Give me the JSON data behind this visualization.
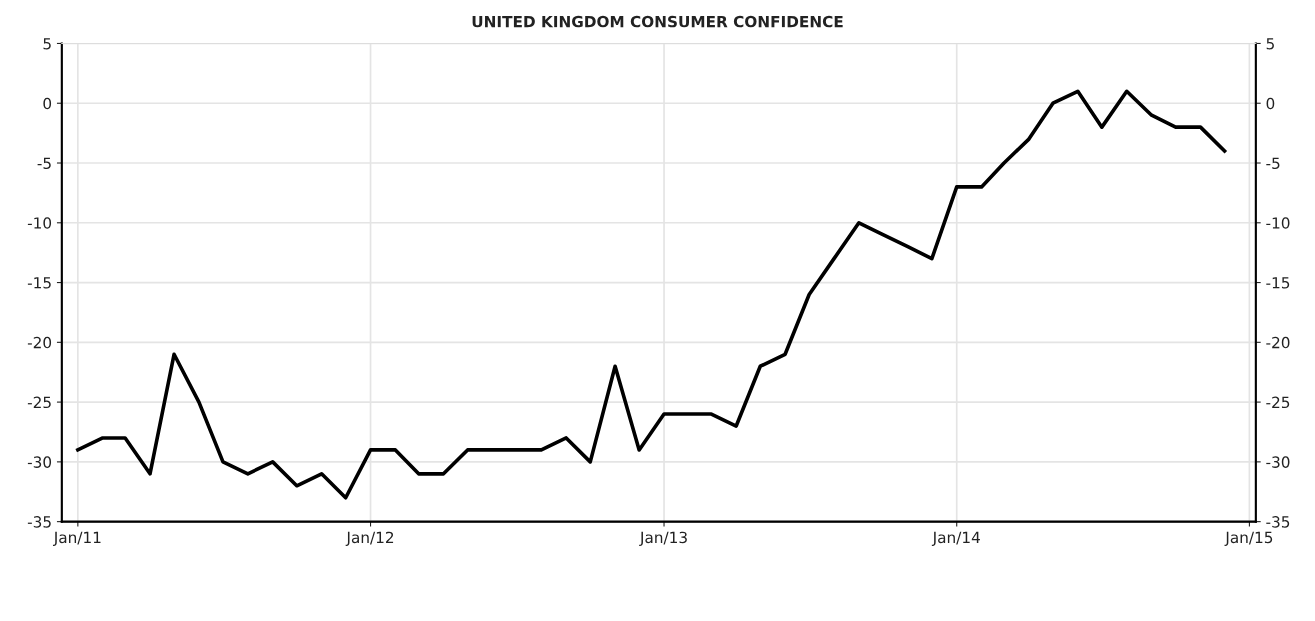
{
  "chart_data": {
    "type": "line",
    "title": "UNITED KINGDOM CONSUMER CONFIDENCE",
    "x": [
      "2011-01",
      "2011-02",
      "2011-03",
      "2011-04",
      "2011-05",
      "2011-06",
      "2011-07",
      "2011-08",
      "2011-09",
      "2011-10",
      "2011-11",
      "2011-12",
      "2012-01",
      "2012-02",
      "2012-03",
      "2012-04",
      "2012-05",
      "2012-06",
      "2012-07",
      "2012-08",
      "2012-09",
      "2012-10",
      "2012-11",
      "2012-12",
      "2013-01",
      "2013-02",
      "2013-03",
      "2013-04",
      "2013-05",
      "2013-06",
      "2013-07",
      "2013-08",
      "2013-09",
      "2013-10",
      "2013-11",
      "2013-12",
      "2014-01",
      "2014-02",
      "2014-03",
      "2014-04",
      "2014-05",
      "2014-06",
      "2014-07",
      "2014-08",
      "2014-09",
      "2014-10",
      "2014-11",
      "2014-12"
    ],
    "series": [
      {
        "color": "#000000",
        "values": [
          -29,
          -28,
          -28,
          -31,
          -21,
          -25,
          -30,
          -31,
          -30,
          -32,
          -31,
          -33,
          -29,
          -29,
          -31,
          -31,
          -29,
          -29,
          -29,
          -29,
          -28,
          -30,
          -22,
          -29,
          -26,
          -26,
          -26,
          -27,
          -22,
          -21,
          -16,
          -13,
          -10,
          -11,
          -12,
          -13,
          -7,
          -7,
          -5,
          -3,
          0,
          1,
          -2,
          1,
          -1,
          -2,
          -2,
          -4
        ]
      }
    ],
    "xlim": [
      "2010-12-12",
      "2015-01-09"
    ],
    "xticks": [
      {
        "value": "2011-01-01",
        "label": "Jan/11"
      },
      {
        "value": "2012-01-01",
        "label": "Jan/12"
      },
      {
        "value": "2013-01-01",
        "label": "Jan/13"
      },
      {
        "value": "2014-01-01",
        "label": "Jan/14"
      },
      {
        "value": "2015-01-01",
        "label": "Jan/15"
      }
    ],
    "ylim": [
      -35,
      5
    ],
    "yticks": [
      -35,
      -30,
      -25,
      -20,
      -15,
      -10,
      -5,
      0,
      5
    ],
    "y2lim": [
      -35,
      5
    ],
    "y2ticks": [
      -35,
      -30,
      -25,
      -20,
      -15,
      -10,
      -5,
      0,
      5
    ],
    "grid": true,
    "legend": false,
    "line_style": "solid",
    "marker": "none"
  }
}
